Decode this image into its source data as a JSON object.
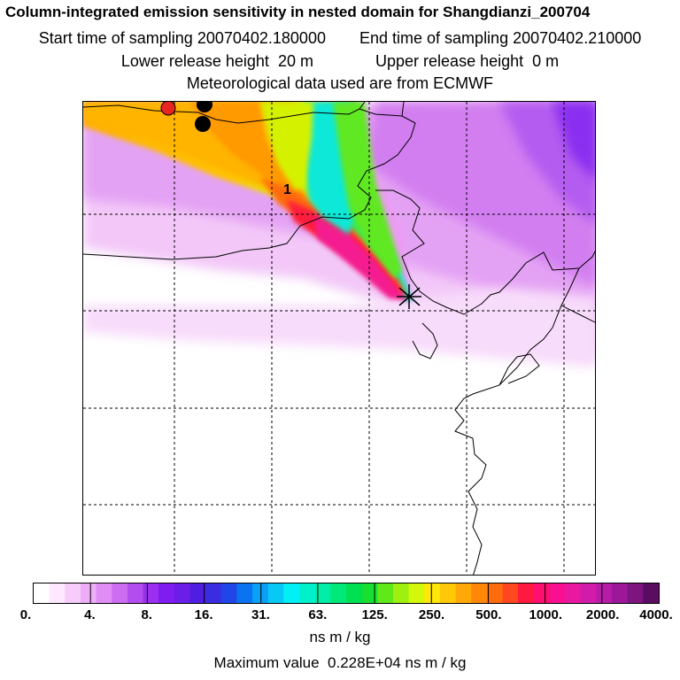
{
  "header": {
    "title": "Column-integrated emission sensitivity in nested domain for Shangdianzi_200704",
    "start_label": "Start time of sampling",
    "start_value": "20070402.180000",
    "end_label": "End time of sampling",
    "end_value": "20070402.210000",
    "lower_label": "Lower release height",
    "lower_value": "20 m",
    "upper_label": "Upper release height",
    "upper_value": "0 m",
    "met_line": "Meteorological data used are from ECMWF"
  },
  "map": {
    "label_1": "1",
    "release_site_marker": "x-marker",
    "markers": [
      {
        "name": "red-dot",
        "color": "#e8261f"
      },
      {
        "name": "black-dot",
        "color": "#000000"
      },
      {
        "name": "black-dot",
        "color": "#000000"
      }
    ]
  },
  "colorbar": {
    "tick_labels": [
      "0.",
      "4.",
      "8.",
      "16.",
      "31.",
      "63.",
      "125.",
      "250.",
      "500.",
      "1000.",
      "2000.",
      "4000."
    ],
    "colors": [
      "#ffffff",
      "#fde8ff",
      "#f7ccfb",
      "#eeaef7",
      "#e08ef5",
      "#cc6df2",
      "#b44df0",
      "#9a2ff0",
      "#7f1cef",
      "#6a1ee8",
      "#4f1ee0",
      "#3a2ce0",
      "#2046e8",
      "#0a74f0",
      "#0aa0f5",
      "#08c8f5",
      "#00f0f5",
      "#00f0cc",
      "#00eea8",
      "#00e878",
      "#00e050",
      "#18e030",
      "#60e818",
      "#9ef010",
      "#d4f80a",
      "#ffe808",
      "#ffc808",
      "#ffa808",
      "#ff8808",
      "#ff6a0c",
      "#ff4820",
      "#ff1840",
      "#ff1070",
      "#f81090",
      "#e818a0",
      "#d01ca8",
      "#b61ca8",
      "#9c1898",
      "#7e1480",
      "#5a0c60"
    ],
    "units": "ns m / kg",
    "max_label": "Maximum value",
    "max_value": "0.228E+04 ns m / kg"
  }
}
